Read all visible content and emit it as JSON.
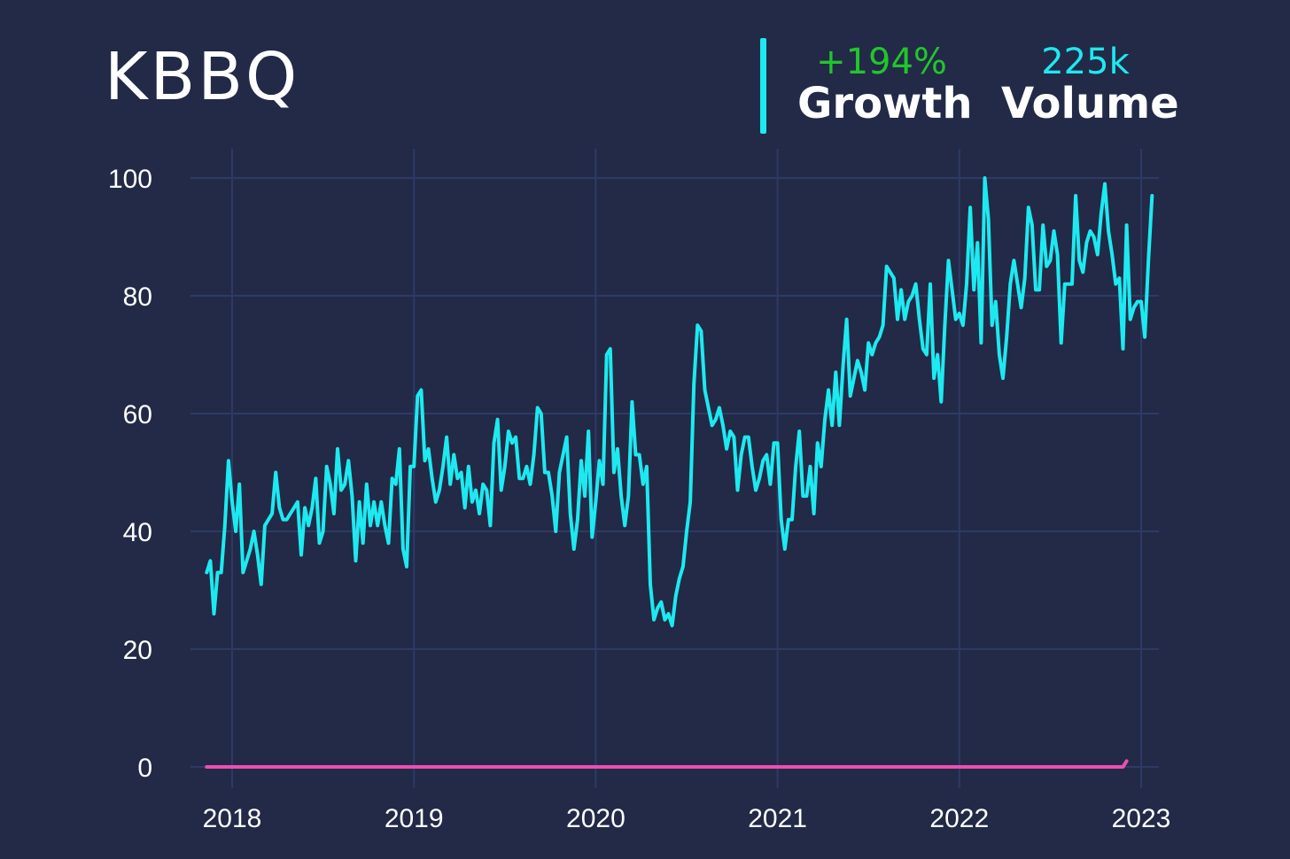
{
  "header": {
    "title": "KBBQ",
    "growth_value": "+194%",
    "growth_label": "Growth",
    "volume_value": "225k",
    "volume_label": "Volume"
  },
  "colors": {
    "background": "#222a47",
    "grid": "#2e3a66",
    "series_main": "#1de9f0",
    "series_baseline": "#ec4fb1",
    "growth": "#22c52c"
  },
  "chart_data": {
    "type": "line",
    "title": "KBBQ",
    "xlabel": "",
    "ylabel": "",
    "xlim": [
      2017.85,
      2022.93
    ],
    "ylim": [
      0,
      100
    ],
    "x_ticks": [
      2018,
      2019,
      2020,
      2021,
      2022,
      2023
    ],
    "y_ticks": [
      0,
      20,
      40,
      60,
      80,
      100
    ],
    "grid": true,
    "legend": "none",
    "series": [
      {
        "color": "#1de9f0",
        "points": [
          [
            2017.86,
            33
          ],
          [
            2017.88,
            35
          ],
          [
            2017.9,
            26
          ],
          [
            2017.92,
            33
          ],
          [
            2017.94,
            33
          ],
          [
            2017.96,
            41
          ],
          [
            2017.98,
            52
          ],
          [
            2018.0,
            45
          ],
          [
            2018.02,
            40
          ],
          [
            2018.04,
            48
          ],
          [
            2018.06,
            33
          ],
          [
            2018.08,
            35
          ],
          [
            2018.1,
            37
          ],
          [
            2018.12,
            40
          ],
          [
            2018.14,
            36
          ],
          [
            2018.16,
            31
          ],
          [
            2018.18,
            41
          ],
          [
            2018.2,
            42
          ],
          [
            2018.22,
            43
          ],
          [
            2018.24,
            50
          ],
          [
            2018.26,
            44
          ],
          [
            2018.28,
            42
          ],
          [
            2018.3,
            42
          ],
          [
            2018.32,
            43
          ],
          [
            2018.34,
            44
          ],
          [
            2018.36,
            45
          ],
          [
            2018.38,
            36
          ],
          [
            2018.4,
            44
          ],
          [
            2018.42,
            41
          ],
          [
            2018.44,
            44
          ],
          [
            2018.46,
            49
          ],
          [
            2018.48,
            38
          ],
          [
            2018.5,
            40
          ],
          [
            2018.52,
            51
          ],
          [
            2018.54,
            48
          ],
          [
            2018.56,
            43
          ],
          [
            2018.58,
            54
          ],
          [
            2018.6,
            47
          ],
          [
            2018.62,
            48
          ],
          [
            2018.64,
            52
          ],
          [
            2018.66,
            46
          ],
          [
            2018.68,
            35
          ],
          [
            2018.7,
            45
          ],
          [
            2018.72,
            38
          ],
          [
            2018.74,
            48
          ],
          [
            2018.76,
            41
          ],
          [
            2018.78,
            45
          ],
          [
            2018.8,
            41
          ],
          [
            2018.82,
            45
          ],
          [
            2018.84,
            41
          ],
          [
            2018.86,
            38
          ],
          [
            2018.88,
            49
          ],
          [
            2018.9,
            48
          ],
          [
            2018.92,
            54
          ],
          [
            2018.94,
            37
          ],
          [
            2018.96,
            34
          ],
          [
            2018.98,
            51
          ],
          [
            2019.0,
            51
          ],
          [
            2019.02,
            63
          ],
          [
            2019.04,
            64
          ],
          [
            2019.06,
            52
          ],
          [
            2019.08,
            54
          ],
          [
            2019.1,
            49
          ],
          [
            2019.12,
            45
          ],
          [
            2019.14,
            47
          ],
          [
            2019.16,
            51
          ],
          [
            2019.18,
            56
          ],
          [
            2019.2,
            48
          ],
          [
            2019.22,
            53
          ],
          [
            2019.24,
            49
          ],
          [
            2019.26,
            50
          ],
          [
            2019.28,
            44
          ],
          [
            2019.3,
            51
          ],
          [
            2019.32,
            45
          ],
          [
            2019.34,
            47
          ],
          [
            2019.36,
            43
          ],
          [
            2019.38,
            48
          ],
          [
            2019.4,
            47
          ],
          [
            2019.42,
            41
          ],
          [
            2019.44,
            55
          ],
          [
            2019.46,
            59
          ],
          [
            2019.48,
            47
          ],
          [
            2019.5,
            51
          ],
          [
            2019.52,
            57
          ],
          [
            2019.54,
            55
          ],
          [
            2019.56,
            56
          ],
          [
            2019.58,
            49
          ],
          [
            2019.6,
            49
          ],
          [
            2019.62,
            51
          ],
          [
            2019.64,
            48
          ],
          [
            2019.66,
            53
          ],
          [
            2019.68,
            61
          ],
          [
            2019.7,
            60
          ],
          [
            2019.72,
            50
          ],
          [
            2019.74,
            50
          ],
          [
            2019.76,
            46
          ],
          [
            2019.78,
            40
          ],
          [
            2019.8,
            50
          ],
          [
            2019.82,
            53
          ],
          [
            2019.84,
            56
          ],
          [
            2019.86,
            43
          ],
          [
            2019.88,
            37
          ],
          [
            2019.9,
            42
          ],
          [
            2019.92,
            52
          ],
          [
            2019.94,
            46
          ],
          [
            2019.96,
            57
          ],
          [
            2019.98,
            39
          ],
          [
            2020.0,
            45
          ],
          [
            2020.02,
            52
          ],
          [
            2020.04,
            48
          ],
          [
            2020.06,
            70
          ],
          [
            2020.08,
            71
          ],
          [
            2020.1,
            50
          ],
          [
            2020.12,
            54
          ],
          [
            2020.14,
            46
          ],
          [
            2020.16,
            41
          ],
          [
            2020.18,
            46
          ],
          [
            2020.2,
            62
          ],
          [
            2020.22,
            53
          ],
          [
            2020.24,
            53
          ],
          [
            2020.26,
            48
          ],
          [
            2020.28,
            51
          ],
          [
            2020.3,
            31
          ],
          [
            2020.32,
            25
          ],
          [
            2020.34,
            27
          ],
          [
            2020.36,
            28
          ],
          [
            2020.38,
            25
          ],
          [
            2020.4,
            26
          ],
          [
            2020.42,
            24
          ],
          [
            2020.44,
            29
          ],
          [
            2020.46,
            32
          ],
          [
            2020.48,
            34
          ],
          [
            2020.5,
            40
          ],
          [
            2020.52,
            45
          ],
          [
            2020.54,
            65
          ],
          [
            2020.56,
            75
          ],
          [
            2020.58,
            74
          ],
          [
            2020.6,
            64
          ],
          [
            2020.62,
            61
          ],
          [
            2020.64,
            58
          ],
          [
            2020.66,
            59
          ],
          [
            2020.68,
            61
          ],
          [
            2020.7,
            58
          ],
          [
            2020.72,
            54
          ],
          [
            2020.74,
            57
          ],
          [
            2020.76,
            56
          ],
          [
            2020.78,
            47
          ],
          [
            2020.8,
            53
          ],
          [
            2020.82,
            56
          ],
          [
            2020.84,
            56
          ],
          [
            2020.86,
            51
          ],
          [
            2020.88,
            47
          ],
          [
            2020.9,
            49
          ],
          [
            2020.92,
            52
          ],
          [
            2020.94,
            53
          ],
          [
            2020.96,
            48
          ],
          [
            2020.98,
            55
          ],
          [
            2021.0,
            55
          ],
          [
            2021.02,
            42
          ],
          [
            2021.04,
            37
          ],
          [
            2021.06,
            42
          ],
          [
            2021.08,
            42
          ],
          [
            2021.1,
            51
          ],
          [
            2021.12,
            57
          ],
          [
            2021.14,
            46
          ],
          [
            2021.16,
            46
          ],
          [
            2021.18,
            51
          ],
          [
            2021.2,
            43
          ],
          [
            2021.22,
            55
          ],
          [
            2021.24,
            51
          ],
          [
            2021.26,
            59
          ],
          [
            2021.28,
            64
          ],
          [
            2021.3,
            58
          ],
          [
            2021.32,
            67
          ],
          [
            2021.34,
            58
          ],
          [
            2021.36,
            68
          ],
          [
            2021.38,
            76
          ],
          [
            2021.4,
            63
          ],
          [
            2021.42,
            66
          ],
          [
            2021.44,
            69
          ],
          [
            2021.46,
            67
          ],
          [
            2021.48,
            64
          ],
          [
            2021.5,
            72
          ],
          [
            2021.52,
            70
          ],
          [
            2021.54,
            72
          ],
          [
            2021.56,
            73
          ],
          [
            2021.58,
            75
          ],
          [
            2021.6,
            85
          ],
          [
            2021.62,
            84
          ],
          [
            2021.64,
            83
          ],
          [
            2021.66,
            76
          ],
          [
            2021.68,
            81
          ],
          [
            2021.7,
            76
          ],
          [
            2021.72,
            79
          ],
          [
            2021.74,
            80
          ],
          [
            2021.76,
            82
          ],
          [
            2021.78,
            76
          ],
          [
            2021.8,
            71
          ],
          [
            2021.82,
            70
          ],
          [
            2021.84,
            82
          ],
          [
            2021.86,
            66
          ],
          [
            2021.88,
            70
          ],
          [
            2021.9,
            62
          ],
          [
            2021.92,
            75
          ],
          [
            2021.94,
            86
          ],
          [
            2021.96,
            81
          ],
          [
            2021.98,
            76
          ],
          [
            2022.0,
            77
          ],
          [
            2022.02,
            75
          ],
          [
            2022.04,
            82
          ],
          [
            2022.06,
            95
          ],
          [
            2022.08,
            81
          ],
          [
            2022.1,
            89
          ],
          [
            2022.12,
            72
          ],
          [
            2022.14,
            100
          ],
          [
            2022.16,
            93
          ],
          [
            2022.18,
            75
          ],
          [
            2022.2,
            79
          ],
          [
            2022.22,
            70
          ],
          [
            2022.24,
            66
          ],
          [
            2022.26,
            73
          ],
          [
            2022.28,
            82
          ],
          [
            2022.3,
            86
          ],
          [
            2022.32,
            82
          ],
          [
            2022.34,
            78
          ],
          [
            2022.36,
            83
          ],
          [
            2022.38,
            95
          ],
          [
            2022.4,
            92
          ],
          [
            2022.42,
            81
          ],
          [
            2022.44,
            81
          ],
          [
            2022.46,
            92
          ],
          [
            2022.48,
            85
          ],
          [
            2022.5,
            86
          ],
          [
            2022.52,
            91
          ],
          [
            2022.54,
            87
          ],
          [
            2022.56,
            72
          ],
          [
            2022.58,
            82
          ],
          [
            2022.6,
            82
          ],
          [
            2022.62,
            82
          ],
          [
            2022.64,
            97
          ],
          [
            2022.66,
            86
          ],
          [
            2022.68,
            84
          ],
          [
            2022.7,
            89
          ],
          [
            2022.72,
            91
          ],
          [
            2022.74,
            90
          ],
          [
            2022.76,
            87
          ],
          [
            2022.78,
            94
          ],
          [
            2022.8,
            99
          ],
          [
            2022.82,
            91
          ],
          [
            2022.84,
            87
          ],
          [
            2022.86,
            82
          ],
          [
            2022.88,
            83
          ],
          [
            2022.9,
            71
          ],
          [
            2022.92,
            92
          ],
          [
            2022.94,
            76
          ],
          [
            2022.96,
            78
          ],
          [
            2022.98,
            79
          ],
          [
            2023.0,
            79
          ],
          [
            2023.02,
            73
          ],
          [
            2023.04,
            86
          ],
          [
            2023.06,
            97
          ]
        ]
      },
      {
        "color": "#ec4fb1",
        "points": [
          [
            2017.86,
            0
          ],
          [
            2022.9,
            0
          ],
          [
            2022.92,
            1
          ]
        ]
      }
    ]
  }
}
